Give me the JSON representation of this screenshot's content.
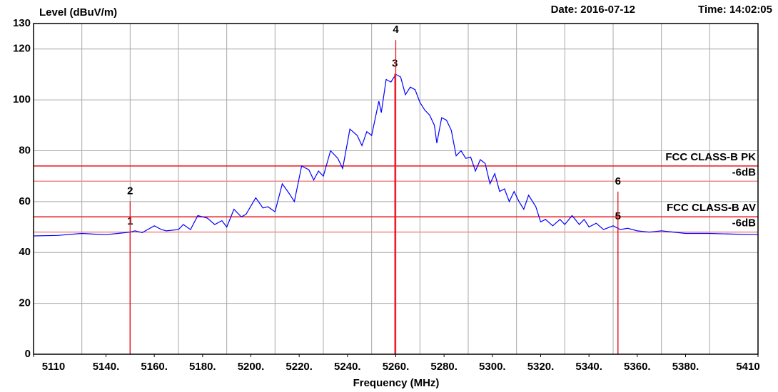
{
  "chart_data": {
    "type": "line",
    "ylabel": "Level (dBuV/m)",
    "xlabel": "Frequency (MHz)",
    "date": "Date: 2016-07-12",
    "time": "Time: 14:02:05",
    "color": "#0000ff",
    "xlim": [
      5110,
      5410
    ],
    "ylim": [
      0,
      130
    ],
    "yticks": [
      0,
      20,
      40,
      60,
      80,
      100,
      120,
      130
    ],
    "xticks": [
      5110,
      {
        "value": 5140,
        "label": "5140."
      },
      {
        "value": 5160,
        "label": "5160."
      },
      {
        "value": 5180,
        "label": "5180."
      },
      {
        "value": 5200,
        "label": "5200."
      },
      {
        "value": 5220,
        "label": "5220."
      },
      {
        "value": 5240,
        "label": "5240."
      },
      {
        "value": 5260,
        "label": "5260."
      },
      {
        "value": 5280,
        "label": "5280."
      },
      {
        "value": 5300,
        "label": "5300."
      },
      {
        "value": 5320,
        "label": "5320."
      },
      {
        "value": 5340,
        "label": "5340."
      },
      {
        "value": 5360,
        "label": "5360."
      },
      {
        "value": 5380,
        "label": "5380."
      },
      5410
    ],
    "xgrid": [
      5130,
      5150,
      5170,
      5190,
      5210,
      5230,
      5250,
      5270,
      5290,
      5310,
      5330,
      5350,
      5370,
      5390
    ],
    "grid": true,
    "x": [
      5110,
      5120,
      5130,
      5135,
      5140,
      5145,
      5150,
      5152,
      5155,
      5160,
      5163,
      5165,
      5170,
      5172,
      5175,
      5178,
      5182,
      5185,
      5188,
      5190,
      5193,
      5196,
      5198,
      5202,
      5205,
      5207,
      5210,
      5213,
      5216,
      5218,
      5221,
      5224,
      5226,
      5228,
      5230,
      5233,
      5236,
      5238,
      5241,
      5244,
      5246,
      5248,
      5250,
      5253,
      5254,
      5256,
      5258,
      5260,
      5262,
      5264,
      5266,
      5268,
      5270,
      5272,
      5274,
      5276,
      5277,
      5279,
      5281,
      5283,
      5285,
      5287,
      5289,
      5291,
      5293,
      5295,
      5297,
      5299,
      5301,
      5303,
      5305,
      5307,
      5309,
      5311,
      5313,
      5315,
      5318,
      5320,
      5322,
      5325,
      5328,
      5330,
      5333,
      5336,
      5338,
      5340,
      5343,
      5346,
      5350,
      5353,
      5356,
      5360,
      5365,
      5370,
      5380,
      5390,
      5400,
      5410
    ],
    "values": [
      46.5,
      46.7,
      47.5,
      47.2,
      47,
      47.5,
      48,
      48.5,
      47.8,
      50.5,
      49,
      48.5,
      49,
      51,
      49,
      54.5,
      53.5,
      51,
      52.5,
      50,
      57,
      54,
      55,
      61.5,
      57.5,
      58,
      56,
      67,
      63,
      60,
      74,
      72.5,
      68.5,
      72,
      70,
      80,
      77,
      73,
      88.5,
      86,
      82,
      87.5,
      86,
      99.5,
      95,
      108,
      107,
      110,
      109,
      102,
      105,
      104,
      99,
      96,
      94,
      90,
      83,
      93,
      92,
      88,
      78,
      80,
      77,
      77.5,
      72,
      76.5,
      75,
      67,
      71,
      64,
      65,
      60,
      64,
      60,
      57,
      62.5,
      58,
      52,
      53,
      50.5,
      53,
      51,
      54.5,
      51,
      53,
      50,
      51.5,
      49,
      50.5,
      49,
      49.5,
      48.5,
      48,
      48.5,
      47.5,
      47.5,
      47.2,
      47
    ],
    "limit_lines": [
      {
        "label": "FCC CLASS-B PK",
        "value": 74,
        "color": "#e8141e"
      },
      {
        "label": "-6dB",
        "value": 68,
        "color": "#f08a8a"
      },
      {
        "label": "FCC CLASS-B AV",
        "value": 54,
        "color": "#e8141e"
      },
      {
        "label": "-6dB",
        "value": 48,
        "color": "#f08a8a"
      }
    ],
    "markers": [
      {
        "label": "1",
        "x": 5150,
        "value": 48.2
      },
      {
        "label": "2",
        "x": 5150,
        "value": 60.1
      },
      {
        "label": "3",
        "x": 5259.6,
        "value": 110.3
      },
      {
        "label": "4",
        "x": 5260,
        "value": 123.5
      },
      {
        "label": "5",
        "x": 5352,
        "value": 50.1
      },
      {
        "label": "6",
        "x": 5352,
        "value": 63.9
      }
    ]
  }
}
